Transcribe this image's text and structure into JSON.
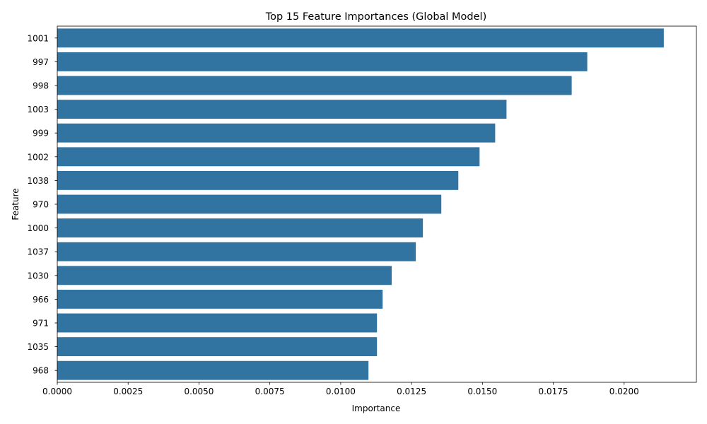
{
  "chart_data": {
    "type": "bar",
    "orientation": "horizontal",
    "title": "Top 15 Feature Importances (Global Model)",
    "xlabel": "Importance",
    "ylabel": "Feature",
    "categories": [
      "1001",
      "997",
      "998",
      "1003",
      "999",
      "1002",
      "1038",
      "970",
      "1000",
      "1037",
      "1030",
      "966",
      "971",
      "1035",
      "968"
    ],
    "values": [
      0.0214,
      0.0187,
      0.01815,
      0.01585,
      0.01545,
      0.0149,
      0.01415,
      0.01355,
      0.0129,
      0.01265,
      0.0118,
      0.01148,
      0.01128,
      0.01128,
      0.01098
    ],
    "xlim": [
      0,
      0.02255
    ],
    "xticks": [
      0,
      0.0025,
      0.005,
      0.0075,
      0.01,
      0.0125,
      0.015,
      0.0175,
      0.02
    ],
    "xtick_labels": [
      "0.0000",
      "0.0025",
      "0.0050",
      "0.0075",
      "0.0100",
      "0.0125",
      "0.0150",
      "0.0175",
      "0.0200"
    ],
    "grid": false,
    "bar_color": "#3274a1"
  }
}
